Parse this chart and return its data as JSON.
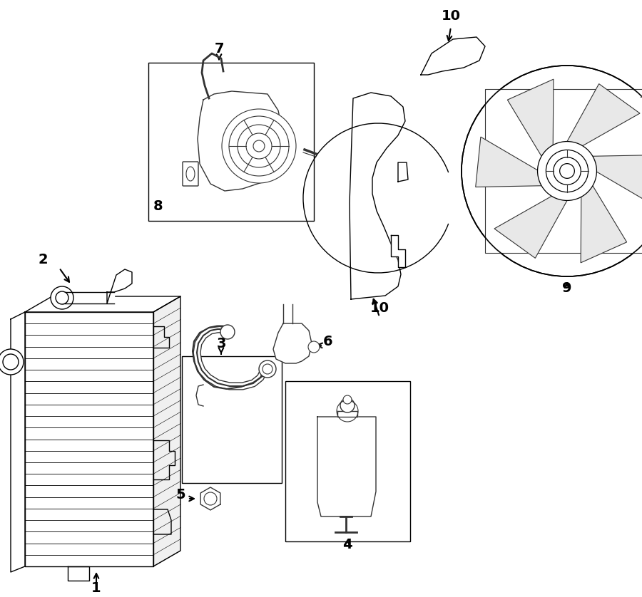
{
  "bg_color": "#ffffff",
  "lc": "#000000",
  "pc": "#333333",
  "lw": 1.0,
  "label_fs": 12,
  "figw": 9.0,
  "figh": 8.38,
  "dpi": 100
}
